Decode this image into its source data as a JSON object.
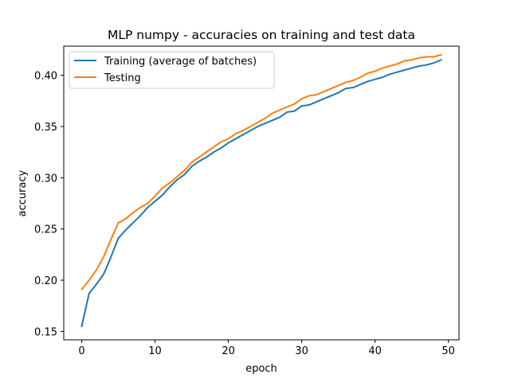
{
  "chart_data": {
    "type": "line",
    "title": "MLP numpy - accuracies on training and test data",
    "xlabel": "epoch",
    "ylabel": "accuracy",
    "xlim": [
      -2.45,
      51.45
    ],
    "ylim": [
      0.1418,
      0.4284
    ],
    "xticks": [
      0,
      10,
      20,
      30,
      40,
      50
    ],
    "yticks": [
      0.15,
      0.2,
      0.25,
      0.3,
      0.35,
      0.4
    ],
    "ytick_labels": [
      "0.15",
      "0.20",
      "0.25",
      "0.30",
      "0.35",
      "0.40"
    ],
    "grid": false,
    "legend_position": "upper-left",
    "series": [
      {
        "name": "Training (average of batches)",
        "color": "#1f77b4",
        "x": [
          0,
          1,
          2,
          3,
          4,
          5,
          6,
          7,
          8,
          9,
          10,
          11,
          12,
          13,
          14,
          15,
          16,
          17,
          18,
          19,
          20,
          21,
          22,
          23,
          24,
          25,
          26,
          27,
          28,
          29,
          30,
          31,
          32,
          33,
          34,
          35,
          36,
          37,
          38,
          39,
          40,
          41,
          42,
          43,
          44,
          45,
          46,
          47,
          48,
          49
        ],
        "values": [
          0.155,
          0.187,
          0.196,
          0.206,
          0.223,
          0.241,
          0.249,
          0.256,
          0.263,
          0.271,
          0.277,
          0.283,
          0.291,
          0.298,
          0.303,
          0.311,
          0.316,
          0.32,
          0.325,
          0.329,
          0.334,
          0.338,
          0.342,
          0.346,
          0.35,
          0.353,
          0.356,
          0.359,
          0.364,
          0.365,
          0.37,
          0.371,
          0.374,
          0.377,
          0.38,
          0.383,
          0.387,
          0.388,
          0.391,
          0.394,
          0.396,
          0.398,
          0.401,
          0.403,
          0.405,
          0.407,
          0.409,
          0.41,
          0.412,
          0.415
        ]
      },
      {
        "name": "Testing",
        "color": "#ff7f0e",
        "x": [
          0,
          1,
          2,
          3,
          4,
          5,
          6,
          7,
          8,
          9,
          10,
          11,
          12,
          13,
          14,
          15,
          16,
          17,
          18,
          19,
          20,
          21,
          22,
          23,
          24,
          25,
          26,
          27,
          28,
          29,
          30,
          31,
          32,
          33,
          34,
          35,
          36,
          37,
          38,
          39,
          40,
          41,
          42,
          43,
          44,
          45,
          46,
          47,
          48,
          49
        ],
        "values": [
          0.191,
          0.2,
          0.21,
          0.223,
          0.24,
          0.256,
          0.26,
          0.266,
          0.271,
          0.275,
          0.282,
          0.29,
          0.295,
          0.301,
          0.307,
          0.315,
          0.32,
          0.325,
          0.33,
          0.335,
          0.338,
          0.343,
          0.346,
          0.35,
          0.354,
          0.358,
          0.363,
          0.366,
          0.369,
          0.372,
          0.377,
          0.38,
          0.381,
          0.384,
          0.387,
          0.39,
          0.393,
          0.395,
          0.398,
          0.402,
          0.404,
          0.407,
          0.409,
          0.411,
          0.414,
          0.415,
          0.417,
          0.418,
          0.418,
          0.42
        ]
      }
    ]
  }
}
